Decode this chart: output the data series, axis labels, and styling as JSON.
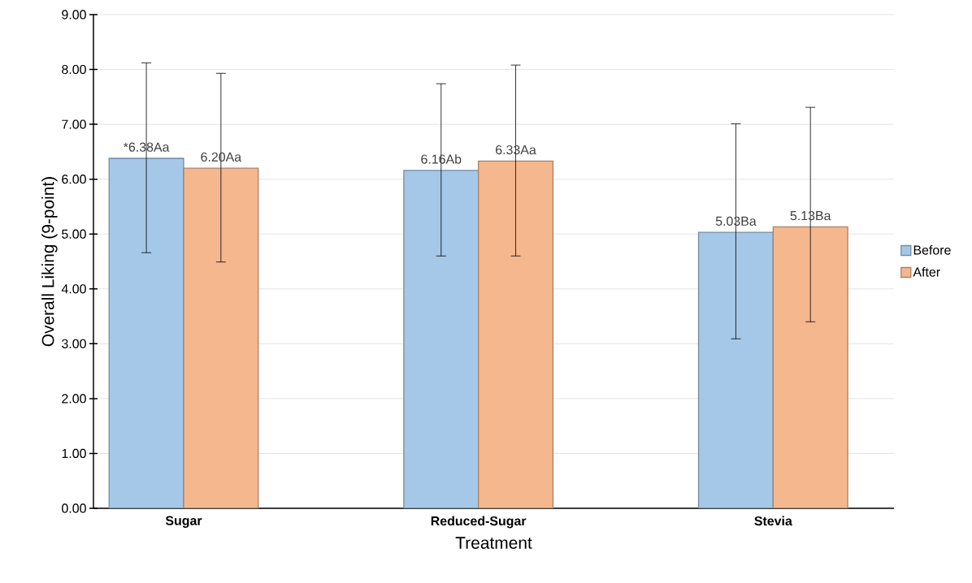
{
  "chart_data": {
    "type": "bar",
    "xlabel": "Treatment",
    "ylabel": "Overall Liking (9-point)",
    "categories": [
      "Sugar",
      "Reduced-Sugar",
      "Stevia"
    ],
    "series": [
      {
        "name": "Before",
        "color": "#a5c8e8",
        "values": [
          6.38,
          6.16,
          5.03
        ],
        "errors": [
          [
            4.66,
            8.12
          ],
          [
            4.6,
            7.74
          ],
          [
            3.09,
            7.01
          ]
        ],
        "value_labels": [
          "*6.38Aa",
          "6.16Ab",
          "5.03Ba"
        ]
      },
      {
        "name": "After",
        "color": "#f5b78e",
        "values": [
          6.2,
          6.33,
          5.13
        ],
        "errors": [
          [
            4.49,
            7.93
          ],
          [
            4.6,
            8.08
          ],
          [
            3.4,
            7.31
          ]
        ],
        "value_labels": [
          "6.20Aa",
          "6.33Aa",
          "5.13Ba"
        ]
      }
    ],
    "ylim": [
      0,
      9
    ],
    "yticks": [
      {
        "value": 0,
        "label": "0.00"
      },
      {
        "value": 1,
        "label": "1.00"
      },
      {
        "value": 2,
        "label": "2.00"
      },
      {
        "value": 3,
        "label": "3.00"
      },
      {
        "value": 4,
        "label": "4.00"
      },
      {
        "value": 5,
        "label": "5.00"
      },
      {
        "value": 6,
        "label": "6.00"
      },
      {
        "value": 7,
        "label": "7.00"
      },
      {
        "value": 8,
        "label": "8.00"
      },
      {
        "value": 9,
        "label": "9.00"
      }
    ],
    "grid": "y",
    "legend": "right"
  }
}
